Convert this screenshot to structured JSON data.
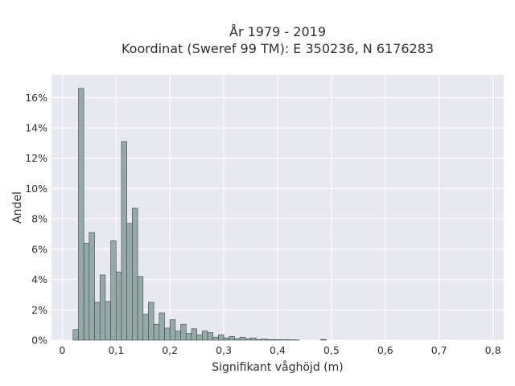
{
  "chart_data": {
    "type": "histogram",
    "title_line1": "År 1979 - 2019",
    "title_line2": "Koordinat (Sweref 99 TM): E 350236, N 6176283",
    "xlabel": "Signifikant våghöjd (m)",
    "ylabel": "Andel",
    "xlim": [
      -0.02,
      0.82
    ],
    "ylim": [
      0,
      17.5
    ],
    "x_ticks": [
      0,
      0.1,
      0.2,
      0.3,
      0.4,
      0.5,
      0.6,
      0.7,
      0.8
    ],
    "x_tick_labels": [
      "0",
      "0,1",
      "0,2",
      "0,3",
      "0,4",
      "0,5",
      "0,6",
      "0,7",
      "0,8"
    ],
    "y_ticks": [
      0,
      2,
      4,
      6,
      8,
      10,
      12,
      14,
      16
    ],
    "y_tick_labels": [
      "0%",
      "2%",
      "4%",
      "6%",
      "8%",
      "10%",
      "12%",
      "14%",
      "16%"
    ],
    "bin_start": 0.02,
    "bin_width": 0.01,
    "values": [
      0.7,
      16.6,
      6.4,
      7.1,
      2.5,
      4.3,
      2.55,
      6.55,
      4.5,
      13.1,
      7.7,
      8.7,
      4.2,
      1.7,
      2.5,
      1.05,
      1.8,
      0.8,
      1.35,
      0.6,
      1.05,
      0.45,
      0.75,
      0.35,
      0.6,
      0.5,
      0.2,
      0.35,
      0.15,
      0.25,
      0.1,
      0.2,
      0.1,
      0.15,
      0.05,
      0.08,
      0.04,
      0.04,
      0.03,
      0.03,
      0.02,
      0.02,
      0.0,
      0.0,
      0.0,
      0.0,
      0.05,
      0.0
    ],
    "bar_color": "#95aaa8",
    "bar_edge": "#3a4a48",
    "plot_bg": "#e8e8f0",
    "grid": true
  }
}
